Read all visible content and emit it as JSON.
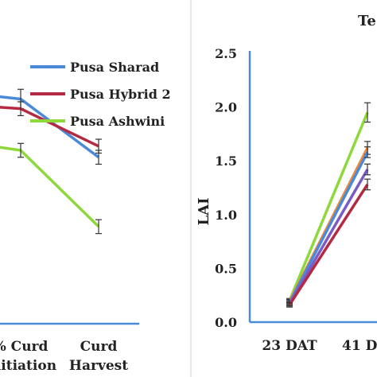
{
  "panels": [
    {
      "legend": [
        {
          "name": "Pusa Sharad",
          "color": "#4a8ad8"
        },
        {
          "name": "Pusa Hybrid 2",
          "color": "#b52a43"
        },
        {
          "name": "Pusa Ashwini",
          "color": "#8fd83c"
        }
      ]
    }
  ],
  "chart_data": [
    {
      "type": "line",
      "title": "",
      "xlabel": "",
      "ylabel": "",
      "categories": [
        "% Curd\nInitiation",
        "Curd\nHarvest"
      ],
      "category_lines": [
        [
          "% Curd",
          "Initiation"
        ],
        [
          "Curd",
          "Harvest"
        ]
      ],
      "series": [
        {
          "name": "Pusa Sharad",
          "color": "#4a8ad8",
          "values": [
            1.62,
            1.2
          ],
          "errors": [
            0.07,
            0.05
          ]
        },
        {
          "name": "Pusa Hybrid 2",
          "color": "#b52a43",
          "values": [
            1.55,
            1.28
          ],
          "errors": [
            0.05,
            0.05
          ]
        },
        {
          "name": "Pusa Ashwini",
          "color": "#8fd83c",
          "values": [
            1.25,
            0.7
          ],
          "errors": [
            0.05,
            0.05
          ]
        }
      ],
      "legend_position": "top-right",
      "grid": false
    },
    {
      "type": "line",
      "title": "Te",
      "xlabel": "",
      "ylabel": "LAI",
      "categories": [
        "23 DAT",
        "41 D"
      ],
      "ylim": [
        0,
        2.5
      ],
      "yticks": [
        "0.0",
        "0.5",
        "1.0",
        "1.5",
        "2.0",
        "2.5"
      ],
      "series": [
        {
          "color": "#8fd83c",
          "values": [
            0.2,
            1.95
          ],
          "errors": [
            0.02,
            0.09
          ]
        },
        {
          "color": "#f08a3c",
          "values": [
            0.19,
            1.62
          ],
          "errors": [
            0.02,
            0.06
          ]
        },
        {
          "color": "#4a8ad8",
          "values": [
            0.18,
            1.58
          ],
          "errors": [
            0.02,
            0.05
          ]
        },
        {
          "color": "#7a5cc8",
          "values": [
            0.17,
            1.42
          ],
          "errors": [
            0.02,
            0.05
          ]
        },
        {
          "color": "#b52a43",
          "values": [
            0.16,
            1.28
          ],
          "errors": [
            0.02,
            0.05
          ]
        }
      ],
      "grid": false
    }
  ]
}
